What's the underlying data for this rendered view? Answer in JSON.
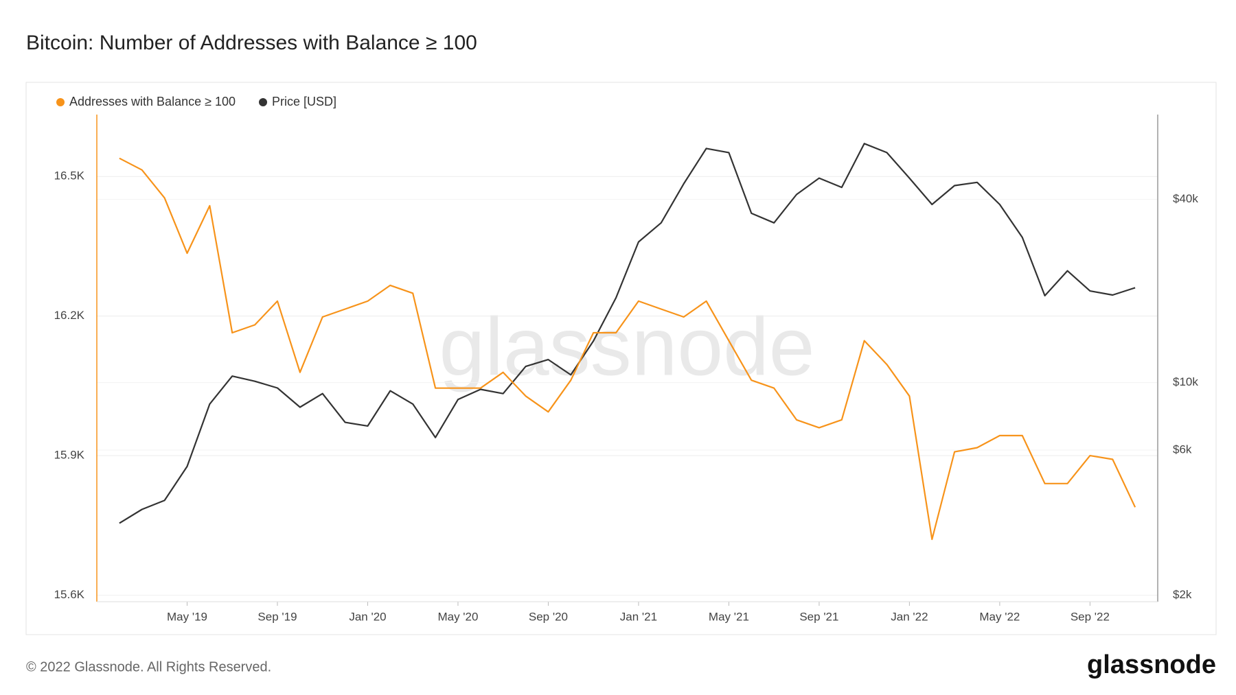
{
  "chart_data": {
    "type": "line",
    "title": "Bitcoin: Number of Addresses with Balance ≥ 100",
    "watermark": "glassnode",
    "footer": "© 2022 Glassnode. All Rights Reserved.",
    "logo": "glassnode",
    "x": [
      "2019-02",
      "2019-03",
      "2019-04",
      "2019-05",
      "2019-06",
      "2019-07",
      "2019-08",
      "2019-09",
      "2019-10",
      "2019-11",
      "2019-12",
      "2020-01",
      "2020-02",
      "2020-03",
      "2020-04",
      "2020-05",
      "2020-06",
      "2020-07",
      "2020-08",
      "2020-09",
      "2020-10",
      "2020-11",
      "2020-12",
      "2021-01",
      "2021-02",
      "2021-03",
      "2021-04",
      "2021-05",
      "2021-06",
      "2021-07",
      "2021-08",
      "2021-09",
      "2021-10",
      "2021-11",
      "2021-12",
      "2022-01",
      "2022-02",
      "2022-03",
      "2022-04",
      "2022-05",
      "2022-06",
      "2022-07",
      "2022-08",
      "2022-09",
      "2022-10",
      "2022-11"
    ],
    "xlim": [
      "2019-01",
      "2022-12"
    ],
    "xticks": [
      {
        "value": "2019-05",
        "label": "May '19"
      },
      {
        "value": "2019-09",
        "label": "Sep '19"
      },
      {
        "value": "2020-01",
        "label": "Jan '20"
      },
      {
        "value": "2020-05",
        "label": "May '20"
      },
      {
        "value": "2020-09",
        "label": "Sep '20"
      },
      {
        "value": "2021-01",
        "label": "Jan '21"
      },
      {
        "value": "2021-05",
        "label": "May '21"
      },
      {
        "value": "2021-09",
        "label": "Sep '21"
      },
      {
        "value": "2022-01",
        "label": "Jan '22"
      },
      {
        "value": "2022-05",
        "label": "May '22"
      },
      {
        "value": "2022-09",
        "label": "Sep '22"
      }
    ],
    "ylim": [
      15586,
      16633
    ],
    "yticks": [
      {
        "value": 15600,
        "label": "15.6K"
      },
      {
        "value": 15900,
        "label": "15.9K"
      },
      {
        "value": 16200,
        "label": "16.2K"
      },
      {
        "value": 16500,
        "label": "16.5K"
      }
    ],
    "y2lim": [
      1905,
      76000
    ],
    "y2log": true,
    "y2ticks": [
      {
        "value": 2000,
        "label": "$2k"
      },
      {
        "value": 6000,
        "label": "$6k"
      },
      {
        "value": 10000,
        "label": "$10k"
      },
      {
        "value": 40000,
        "label": "$40k"
      }
    ],
    "grid": true,
    "legend": "top-left",
    "series": [
      {
        "name": "Addresses with Balance ≥ 100",
        "color": "#f7931a",
        "values": [
          16539,
          16514,
          16454,
          16335,
          16437,
          16164,
          16181,
          16232,
          16079,
          16198,
          16215,
          16232,
          16266,
          16249,
          16045,
          16045,
          16045,
          16079,
          16028,
          15994,
          16062,
          16164,
          16164,
          16232,
          16215,
          16198,
          16232,
          16147,
          16062,
          16045,
          15977,
          15960,
          15977,
          16147,
          16096,
          16028,
          15720,
          15908,
          15917,
          15943,
          15943,
          15840,
          15840,
          15900,
          15892,
          15789
        ]
      },
      {
        "name": "Price [USD]",
        "color": "#333333",
        "axis": "y2",
        "values": [
          3450,
          3830,
          4100,
          5300,
          8500,
          10500,
          10100,
          9600,
          8300,
          9200,
          7400,
          7200,
          9400,
          8500,
          6600,
          8800,
          9500,
          9200,
          11300,
          11900,
          10600,
          13700,
          19000,
          29000,
          33500,
          45000,
          58800,
          57000,
          36000,
          33500,
          41500,
          47000,
          43800,
          61000,
          57000,
          47000,
          38500,
          44400,
          45500,
          38500,
          30000,
          19300,
          23300,
          20000,
          19400,
          20500
        ]
      }
    ]
  }
}
